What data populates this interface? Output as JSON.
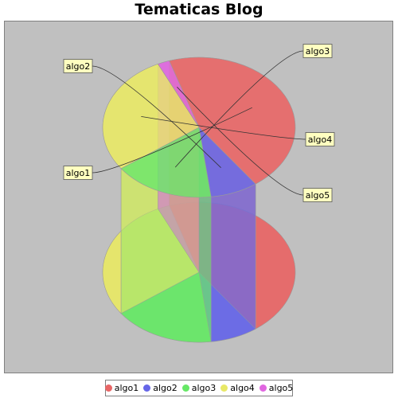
{
  "chart_data": {
    "type": "pie",
    "title": "Tematicas Blog",
    "style": "3d-cylinder",
    "categories": [
      "algo1",
      "algo2",
      "algo3",
      "algo4",
      "algo5"
    ],
    "values": [
      45,
      8,
      17,
      28,
      2
    ],
    "colors": [
      "#e86666",
      "#6666e8",
      "#66e866",
      "#e8e866",
      "#e066e0"
    ],
    "legend": "bottom",
    "background": "#c0c0c0"
  }
}
